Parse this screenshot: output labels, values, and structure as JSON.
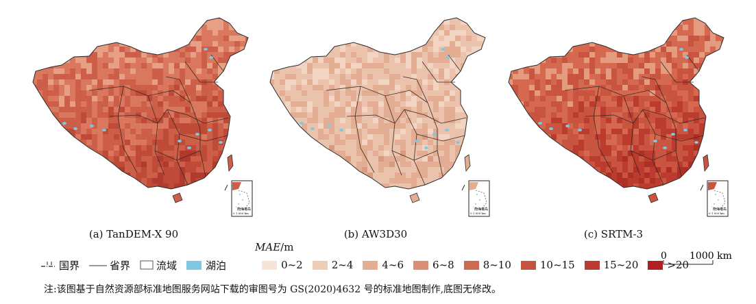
{
  "maps": [
    {
      "caption": "(a) TanDEM-X 90",
      "palette": [
        "#e7a086",
        "#d9785e",
        "#cd5e47",
        "#bf4a38",
        "#b13a2e"
      ]
    },
    {
      "caption": "(b) AW3D30",
      "palette": [
        "#f1d4c2",
        "#ebc2ac",
        "#e2ad93",
        "#d99a7f",
        "#cf8066"
      ]
    },
    {
      "caption": "(c) SRTM-3",
      "palette": [
        "#e49b80",
        "#d5694f",
        "#c95440",
        "#bb3b2f",
        "#ad2f25"
      ]
    }
  ],
  "inset_label": "南海诸岛",
  "inset_scale": "0  1 000 km",
  "legend": {
    "title_italic": "MAE",
    "title_unit": "/m",
    "boundary_items": [
      {
        "label": "国界",
        "icon": "national-boundary-line"
      },
      {
        "label": "省界",
        "icon": "provincial-boundary-line"
      },
      {
        "label": "流域",
        "icon": "basin-box"
      },
      {
        "label": "湖泊",
        "icon": "lake-swatch",
        "color": "#7ec8e3"
      }
    ],
    "classes": [
      {
        "label": "0~2",
        "color": "#f6e4d8"
      },
      {
        "label": "2~4",
        "color": "#efcdb4"
      },
      {
        "label": "4~6",
        "color": "#e4ad91"
      },
      {
        "label": "6~8",
        "color": "#dc8e72"
      },
      {
        "label": "8~10",
        "color": "#cf6a52"
      },
      {
        "label": "10~15",
        "color": "#c7513f"
      },
      {
        "label": "15~20",
        "color": "#bc3a2f"
      },
      {
        "label": ">20",
        "color": "#b01f22"
      }
    ]
  },
  "scale_bar": {
    "zero": "0",
    "distance": "1000 km"
  },
  "note": "注:该图基于自然资源部标准地图服务网站下载的审图号为 GS(2020)4632 号的标准地图制作,底图无修改。"
}
